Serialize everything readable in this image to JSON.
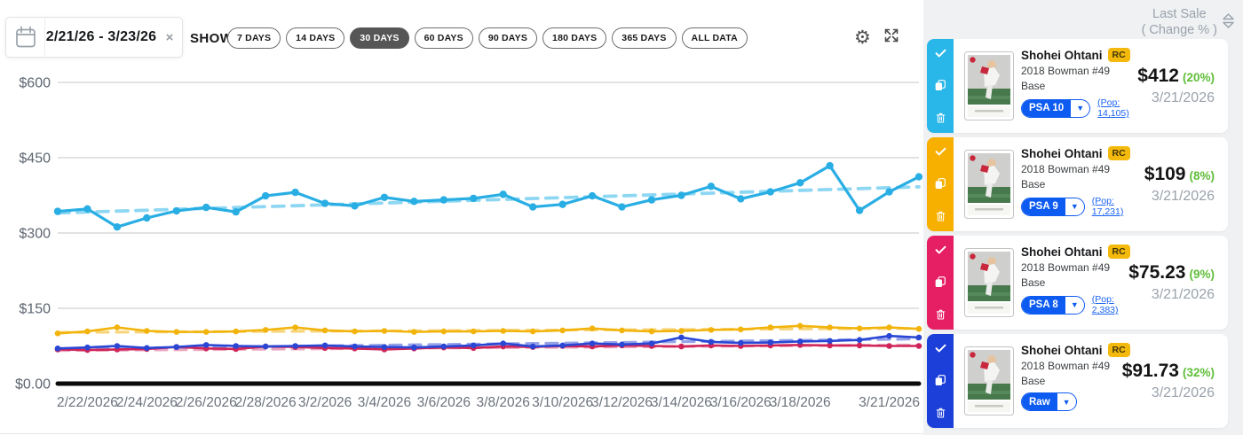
{
  "toolbar": {
    "date_range": "2/21/26 - 3/23/26",
    "show_label": "SHOW",
    "range_options": [
      "7 DAYS",
      "14 DAYS",
      "30 DAYS",
      "60 DAYS",
      "90 DAYS",
      "180 DAYS",
      "365 DAYS",
      "ALL DATA"
    ],
    "selected_range": "30 DAYS"
  },
  "icons": {
    "close": "×",
    "caret_down": "▼",
    "gear": "⚙"
  },
  "chart_data": {
    "type": "line",
    "title": "",
    "xlabel": "",
    "ylabel": "",
    "ylim": [
      0,
      600
    ],
    "n_points": 30,
    "grid": true,
    "y_ticks": [
      {
        "value": 0,
        "label": "$0.00"
      },
      {
        "value": 150,
        "label": "$150"
      },
      {
        "value": 300,
        "label": "$300"
      },
      {
        "value": 450,
        "label": "$450"
      },
      {
        "value": 600,
        "label": "$600"
      }
    ],
    "x_ticks": [
      {
        "point": 1,
        "label": "2/22/2026"
      },
      {
        "point": 3,
        "label": "2/24/2026"
      },
      {
        "point": 5,
        "label": "2/26/2026"
      },
      {
        "point": 7,
        "label": "2/28/2026"
      },
      {
        "point": 9,
        "label": "3/2/2026"
      },
      {
        "point": 11,
        "label": "3/4/2026"
      },
      {
        "point": 13,
        "label": "3/6/2026"
      },
      {
        "point": 15,
        "label": "3/8/2026"
      },
      {
        "point": 17,
        "label": "3/10/2026"
      },
      {
        "point": 19,
        "label": "3/12/2026"
      },
      {
        "point": 21,
        "label": "3/14/2026"
      },
      {
        "point": 23,
        "label": "3/16/2026"
      },
      {
        "point": 25,
        "label": "3/18/2026"
      },
      {
        "point": 28,
        "label": "3/21/2026"
      }
    ],
    "series": [
      {
        "name": "PSA 9",
        "color": "#f2b40c",
        "trend_color": "#f7d57d",
        "width": 2.6,
        "dot_r": 3.3,
        "values": [
          100,
          104,
          112,
          105,
          103,
          103,
          104,
          107,
          112,
          106,
          104,
          105,
          103,
          104,
          104,
          105,
          104,
          106,
          110,
          106,
          104,
          105,
          107,
          108,
          112,
          115,
          112,
          110,
          112,
          109
        ],
        "trend": [
          102,
          110
        ]
      },
      {
        "name": "PSA 8",
        "color": "#d02458",
        "trend_color": "#eba4bf",
        "width": 2.6,
        "dot_r": 3.3,
        "values": [
          68,
          67,
          68,
          69,
          73,
          70,
          69,
          74,
          73,
          71,
          70,
          68,
          70,
          72,
          71,
          74,
          73,
          75,
          74,
          76,
          75,
          74,
          76,
          75,
          76,
          77,
          76,
          76,
          75,
          75
        ],
        "trend": [
          66,
          77
        ]
      },
      {
        "name": "Raw",
        "color": "#2a46d4",
        "trend_color": "#96a2e8",
        "width": 2.6,
        "dot_r": 3.3,
        "values": [
          70,
          72,
          75,
          71,
          73,
          77,
          75,
          74,
          75,
          76,
          74,
          73,
          72,
          74,
          76,
          80,
          74,
          76,
          80,
          78,
          80,
          92,
          83,
          81,
          82,
          84,
          85,
          87,
          95,
          92
        ],
        "trend": [
          69,
          89
        ]
      },
      {
        "name": "PSA 10",
        "color": "#29aee4",
        "trend_color": "#8ed7f3",
        "width": 3.2,
        "dot_r": 4.2,
        "values": [
          343,
          348,
          312,
          330,
          344,
          351,
          342,
          374,
          381,
          359,
          354,
          371,
          363,
          366,
          369,
          377,
          352,
          357,
          374,
          352,
          366,
          375,
          393,
          368,
          382,
          400,
          434,
          345,
          382,
          412
        ],
        "trend": [
          340,
          392
        ]
      }
    ]
  },
  "sidebar": {
    "header_line1": "Last Sale",
    "header_line2": "( Change % )",
    "rows": [
      {
        "strip_color": "#29b6e8",
        "player": "Shohei Ohtani",
        "rc_badge": "RC",
        "set_line": "2018 Bowman #49",
        "variant": "Base",
        "grade": "PSA 10",
        "pop_line1": "(Pop:",
        "pop_line2": "14,105)",
        "price": "$412",
        "change_pct": "(20%)",
        "sale_date": "3/21/2026"
      },
      {
        "strip_color": "#f7b000",
        "player": "Shohei Ohtani",
        "rc_badge": "RC",
        "set_line": "2018 Bowman #49",
        "variant": "Base",
        "grade": "PSA 9",
        "pop_line1": "(Pop:",
        "pop_line2": "17,231)",
        "price": "$109",
        "change_pct": "(8%)",
        "sale_date": "3/21/2026"
      },
      {
        "strip_color": "#e61e63",
        "player": "Shohei Ohtani",
        "rc_badge": "RC",
        "set_line": "2018 Bowman #49",
        "variant": "Base",
        "grade": "PSA 8",
        "pop_line1": "(Pop:",
        "pop_line2": "2,383)",
        "price": "$75.23",
        "change_pct": "(9%)",
        "sale_date": "3/21/2026"
      },
      {
        "strip_color": "#1c3ed9",
        "player": "Shohei Ohtani",
        "rc_badge": "RC",
        "set_line": "2018 Bowman #49",
        "variant": "Base",
        "grade": "Raw",
        "price": "$91.73",
        "change_pct": "(32%)",
        "sale_date": "3/21/2026"
      }
    ]
  },
  "colors": {
    "accent_blue": "#0d5bf0",
    "positive_green": "#5fbe39",
    "sidebar_bg": "#eff1f3",
    "grid_gray": "#d6d8da",
    "axis_black": "#0b0b0b",
    "muted_text": "#9aa2ab"
  }
}
